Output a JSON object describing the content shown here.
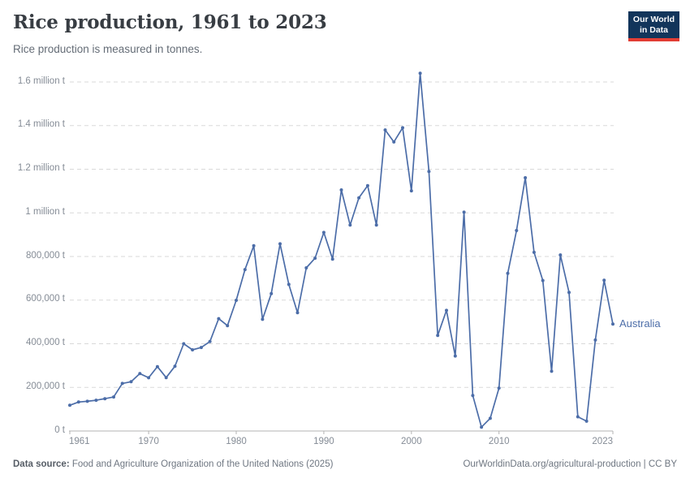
{
  "header": {
    "title": "Rice production, 1961 to 2023",
    "subtitle": "Rice production is measured in tonnes.",
    "logo": {
      "line1": "Our World",
      "line2": "in Data"
    }
  },
  "chart_data": {
    "type": "line",
    "title": "Rice production, 1961 to 2023",
    "unit": "tonnes",
    "series_label": "Australia",
    "x": [
      1961,
      1962,
      1963,
      1964,
      1965,
      1966,
      1967,
      1968,
      1969,
      1970,
      1971,
      1972,
      1973,
      1974,
      1975,
      1976,
      1977,
      1978,
      1979,
      1980,
      1981,
      1982,
      1983,
      1984,
      1985,
      1986,
      1987,
      1988,
      1989,
      1990,
      1991,
      1992,
      1993,
      1994,
      1995,
      1996,
      1997,
      1998,
      1999,
      2000,
      2001,
      2002,
      2003,
      2004,
      2005,
      2006,
      2007,
      2008,
      2009,
      2010,
      2011,
      2012,
      2013,
      2014,
      2015,
      2016,
      2017,
      2018,
      2019,
      2020,
      2021,
      2022,
      2023
    ],
    "values": [
      118000,
      133000,
      136000,
      141000,
      148000,
      156000,
      218000,
      226000,
      263000,
      244000,
      295000,
      245000,
      297000,
      400000,
      372000,
      383000,
      410000,
      515000,
      483000,
      599000,
      740000,
      849000,
      512000,
      630000,
      858000,
      672000,
      542000,
      748000,
      792000,
      910000,
      788000,
      1105000,
      944000,
      1069000,
      1125000,
      944000,
      1380000,
      1325000,
      1390000,
      1101000,
      1640000,
      1190000,
      438000,
      553000,
      344000,
      1003000,
      163000,
      18000,
      58000,
      197000,
      723000,
      919000,
      1161000,
      819000,
      690000,
      274000,
      807000,
      635000,
      65000,
      45000,
      417000,
      691000,
      490000
    ],
    "xlim": [
      1961,
      2023
    ],
    "ylim": [
      0,
      1600000
    ],
    "x_ticks": [
      1961,
      1970,
      1980,
      1990,
      2000,
      2010,
      2023
    ],
    "y_ticks": [
      {
        "value": 0,
        "label": "0 t"
      },
      {
        "value": 200000,
        "label": "200,000 t"
      },
      {
        "value": 400000,
        "label": "400,000 t"
      },
      {
        "value": 600000,
        "label": "600,000 t"
      },
      {
        "value": 800000,
        "label": "800,000 t"
      },
      {
        "value": 1000000,
        "label": "1 million t"
      },
      {
        "value": 1200000,
        "label": "1.2 million t"
      },
      {
        "value": 1400000,
        "label": "1.4 million t"
      },
      {
        "value": 1600000,
        "label": "1.6 million t"
      }
    ],
    "grid": "horizontal-dashed",
    "legend_position": "end-of-line"
  },
  "colors": {
    "line": "#4c6da8",
    "grid": "#d9d9d9",
    "axis": "#b3b3b3",
    "tick_text": "#858c96",
    "logo_navy": "#12355b",
    "logo_red": "#e23d34"
  },
  "footer": {
    "datasource_label": "Data source:",
    "datasource_text": " Food and Agriculture Organization of the United Nations (2025)",
    "credit": "OurWorldinData.org/agricultural-production | CC BY"
  }
}
